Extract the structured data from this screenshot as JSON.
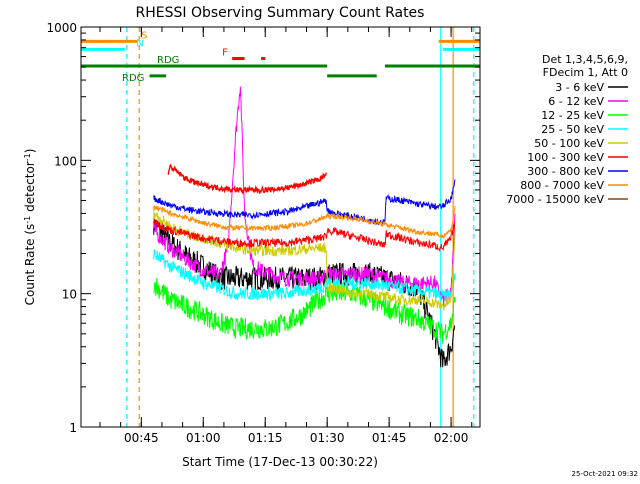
{
  "chart_data": {
    "type": "line",
    "title": "RHESSI Observing Summary Count Rates",
    "xlabel": "Start Time (17-Dec-13 00:30:22)",
    "ylabel": "Count Rate (s",
    "ylabel_sup": "-1",
    "ylabel_rest": " detector",
    "ylabel_sup2": "-1",
    "ylabel_end": ")",
    "yscale": "log",
    "ylim": [
      1,
      1000
    ],
    "xlim_minutes": [
      30.4,
      127.0
    ],
    "x_ticks": [
      {
        "label": "00:45",
        "minutes": 45
      },
      {
        "label": "01:00",
        "minutes": 60
      },
      {
        "label": "01:15",
        "minutes": 75
      },
      {
        "label": "01:30",
        "minutes": 90
      },
      {
        "label": "01:45",
        "minutes": 105
      },
      {
        "label": "02:00",
        "minutes": 120
      }
    ],
    "y_ticks": [
      {
        "label": "1",
        "value": 1
      },
      {
        "label": "10",
        "value": 10
      },
      {
        "label": "100",
        "value": 100
      },
      {
        "label": "1000",
        "value": 1000
      }
    ],
    "legend_header": [
      "Det 1,3,4,5,6,9,",
      "FDecim 1, Att 0"
    ],
    "legend_position": "right",
    "timestamp": "25-Oct-2021 09:32",
    "series": [
      {
        "name": "3 - 6 keV",
        "color": "#000000",
        "x": [
          48,
          52,
          56,
          60,
          64,
          68,
          72,
          76,
          80,
          84,
          88,
          90,
          92,
          96,
          100,
          104,
          108,
          112,
          116,
          118,
          120,
          121
        ],
        "y": [
          34,
          24,
          19,
          16,
          13,
          13,
          13,
          13,
          13,
          13,
          13,
          14,
          14,
          14,
          14,
          13,
          12,
          11,
          5,
          3,
          4,
          6
        ]
      },
      {
        "name": "6 - 12 keV",
        "color": "#ff00ff",
        "x": [
          48,
          52,
          56,
          60,
          64,
          66,
          68,
          69,
          70,
          72,
          76,
          80,
          84,
          88,
          90,
          92,
          96,
          100,
          104,
          108,
          112,
          116,
          118,
          120,
          121
        ],
        "y": [
          30,
          22,
          18,
          15,
          14,
          22,
          180,
          380,
          40,
          16,
          14,
          13,
          13,
          13,
          14,
          14,
          14,
          14,
          13,
          12,
          12,
          12,
          9,
          10,
          40
        ]
      },
      {
        "name": "12 - 25 keV",
        "color": "#00ff00",
        "x": [
          48,
          52,
          56,
          60,
          64,
          68,
          72,
          76,
          80,
          84,
          88,
          90,
          92,
          96,
          100,
          104,
          108,
          112,
          116,
          118,
          120,
          121
        ],
        "y": [
          12,
          9,
          8,
          7,
          6,
          5.5,
          5.5,
          5.5,
          6,
          7,
          9,
          10,
          10,
          10,
          9,
          8,
          7,
          6.5,
          5.5,
          5,
          6,
          9
        ]
      },
      {
        "name": "25 - 50 keV",
        "color": "#00ffff",
        "x": [
          48,
          52,
          56,
          60,
          64,
          68,
          72,
          76,
          80,
          84,
          88,
          90,
          92,
          96,
          100,
          104,
          108,
          112,
          116,
          118,
          120,
          121
        ],
        "y": [
          20,
          16,
          14,
          12,
          11,
          10,
          10,
          10,
          10,
          10.5,
          11,
          12,
          12,
          12,
          12,
          11.5,
          11,
          10.5,
          10,
          9.5,
          10,
          14
        ]
      },
      {
        "name": "50 - 100 keV",
        "color": "#cccc00",
        "x": [
          48,
          52,
          56,
          60,
          64,
          68,
          72,
          76,
          80,
          84,
          88,
          89.8,
          90,
          92,
          96,
          100,
          104,
          108,
          112,
          116,
          118,
          120,
          121
        ],
        "y": [
          40,
          32,
          28,
          26,
          24,
          22,
          21,
          21,
          21,
          21.5,
          22,
          22,
          11,
          11,
          10,
          10,
          9.5,
          9,
          9,
          8.5,
          8,
          9,
          30
        ]
      },
      {
        "name": "100 - 300 keV",
        "color": "#ff0000",
        "x": [
          48,
          52,
          56,
          60,
          64,
          68,
          72,
          76,
          80,
          84,
          88,
          89.8,
          90,
          92,
          96,
          100,
          104,
          104.2,
          108,
          112,
          116,
          118,
          120,
          121
        ],
        "y": [
          35,
          30,
          28,
          26,
          25,
          24,
          24,
          24,
          24,
          25,
          26,
          27,
          30,
          29,
          27,
          25,
          23,
          28,
          26,
          24,
          23,
          22,
          26,
          35
        ]
      },
      {
        "name": "300 - 800 keV",
        "color": "#0000ff",
        "x": [
          48,
          52,
          56,
          60,
          64,
          68,
          72,
          76,
          80,
          84,
          88,
          89.8,
          90,
          92,
          96,
          100,
          104,
          104.2,
          108,
          112,
          116,
          118,
          120,
          121
        ],
        "y": [
          52,
          46,
          43,
          41,
          40,
          39,
          39,
          40,
          41,
          44,
          48,
          50,
          42,
          40,
          38,
          36,
          34,
          52,
          50,
          47,
          45,
          45,
          52,
          70
        ]
      },
      {
        "name": "800 - 7000 keV",
        "color": "#ff8c00",
        "x": [
          48,
          52,
          56,
          60,
          64,
          68,
          72,
          76,
          80,
          84,
          88,
          90,
          92,
          96,
          100,
          104,
          108,
          112,
          116,
          118,
          120,
          121
        ],
        "y": [
          45,
          40,
          37,
          34,
          32,
          31,
          31,
          31,
          32,
          33,
          36,
          38,
          38,
          37,
          35,
          33,
          31,
          29,
          28,
          27,
          30,
          45
        ]
      },
      {
        "name": "7000 - 15000 keV",
        "color": "#8b4513",
        "x": [],
        "y": []
      }
    ],
    "upper_red_outline": {
      "x": [
        51.5,
        52,
        56,
        60,
        64,
        68,
        72,
        76,
        80,
        84,
        88,
        89.8
      ],
      "y": [
        80,
        90,
        72,
        65,
        62,
        60,
        60,
        60,
        62,
        66,
        72,
        78
      ]
    },
    "flag_bars": [
      {
        "label": "S",
        "color": "#ff8c00",
        "level": 780,
        "segments": [
          [
            30.4,
            44
          ],
          [
            117,
            127
          ]
        ]
      },
      {
        "label": "N",
        "color": "#00ffff",
        "level": 680,
        "segments": [
          [
            30.4,
            41
          ],
          [
            118,
            127
          ]
        ]
      },
      {
        "label": "F",
        "color": "#ff0000",
        "level": 580,
        "segments": [
          [
            67,
            70
          ],
          [
            74,
            75
          ]
        ]
      },
      {
        "label": "RDG",
        "color": "#008000",
        "level": 510,
        "segments": [
          [
            30.4,
            90
          ],
          [
            104,
            127
          ]
        ]
      },
      {
        "label": "RDG",
        "color": "#008000",
        "level": 430,
        "segments": [
          [
            47,
            51
          ],
          [
            90,
            102
          ]
        ]
      }
    ],
    "vertical_lines": [
      {
        "minutes": 41.5,
        "color": "#00ffff",
        "dashed": true
      },
      {
        "minutes": 44.5,
        "color": "#ff8c00",
        "dashed": true
      },
      {
        "minutes": 117.5,
        "color": "#00ffff",
        "dashed": false
      },
      {
        "minutes": 120.5,
        "color": "#ff8c00",
        "dashed": false
      },
      {
        "minutes": 125.5,
        "color": "#00ffff",
        "dashed": true
      }
    ]
  }
}
